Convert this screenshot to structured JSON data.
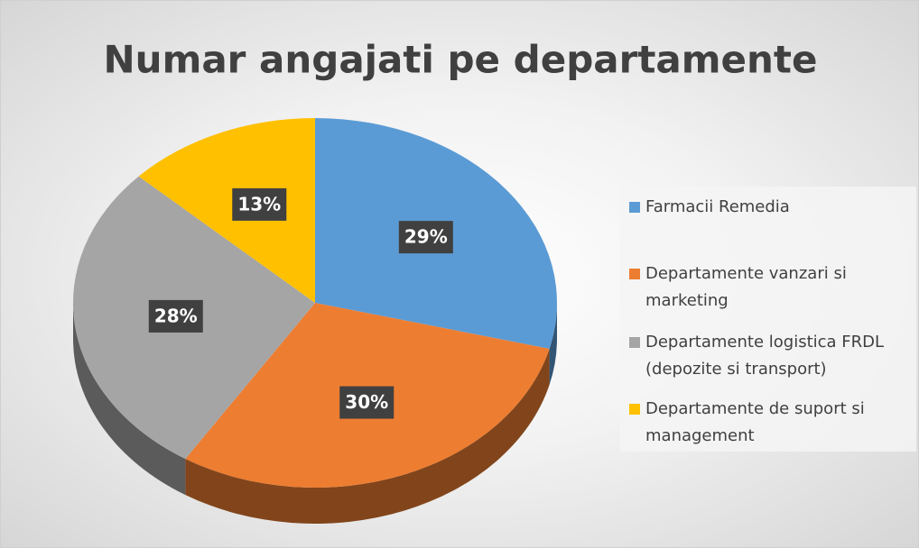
{
  "chart_data": {
    "type": "pie",
    "title": "Numar angajati pe departamente",
    "categories": [
      "Farmacii Remedia",
      "Departamente vanzari si marketing",
      "Departamente logistica FRDL (depozite si transport)",
      "Departamente de suport si management"
    ],
    "values": [
      29,
      30,
      28,
      13
    ],
    "value_labels": [
      "29%",
      "30%",
      "28%",
      "13%"
    ],
    "colors": [
      "#5b9bd5",
      "#ed7d31",
      "#a5a5a5",
      "#ffc000"
    ],
    "legend": "right"
  }
}
